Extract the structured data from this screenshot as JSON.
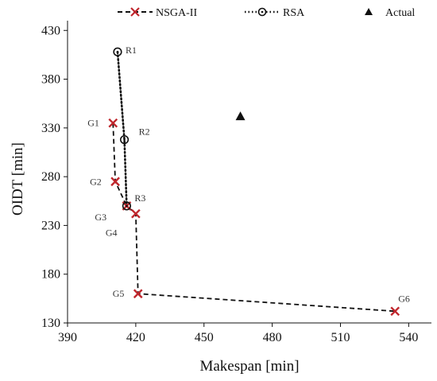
{
  "chart_data": {
    "type": "scatter",
    "xlabel": "Makespan [min]",
    "ylabel": "OIDT [min]",
    "xlim": [
      390,
      550
    ],
    "ylim": [
      130,
      440
    ],
    "xticks": [
      390,
      420,
      450,
      480,
      510,
      540
    ],
    "yticks": [
      130,
      180,
      230,
      280,
      330,
      380,
      430
    ],
    "legend_position": "top",
    "series": [
      {
        "name": "NSGA-II",
        "marker": "x",
        "line": "dashed",
        "marker_color": "#c0272d",
        "line_color": "#111111",
        "points": [
          {
            "label": "G1",
            "x": 410,
            "y": 335
          },
          {
            "label": "G2",
            "x": 411,
            "y": 275
          },
          {
            "label": "G3",
            "x": 416,
            "y": 250
          },
          {
            "label": "G4",
            "x": 420,
            "y": 242
          },
          {
            "label": "G5",
            "x": 421,
            "y": 160
          },
          {
            "label": "G6",
            "x": 534,
            "y": 142
          }
        ]
      },
      {
        "name": "RSA",
        "marker": "circle-dot",
        "line": "dotted",
        "marker_color": "#111111",
        "line_color": "#111111",
        "points": [
          {
            "label": "R1",
            "x": 412,
            "y": 408
          },
          {
            "label": "R2",
            "x": 415,
            "y": 318
          },
          {
            "label": "R3",
            "x": 416,
            "y": 250
          }
        ]
      },
      {
        "name": "Actual",
        "marker": "triangle",
        "line": "none",
        "marker_color": "#111111",
        "points": [
          {
            "label": "",
            "x": 466,
            "y": 342
          }
        ]
      }
    ]
  }
}
